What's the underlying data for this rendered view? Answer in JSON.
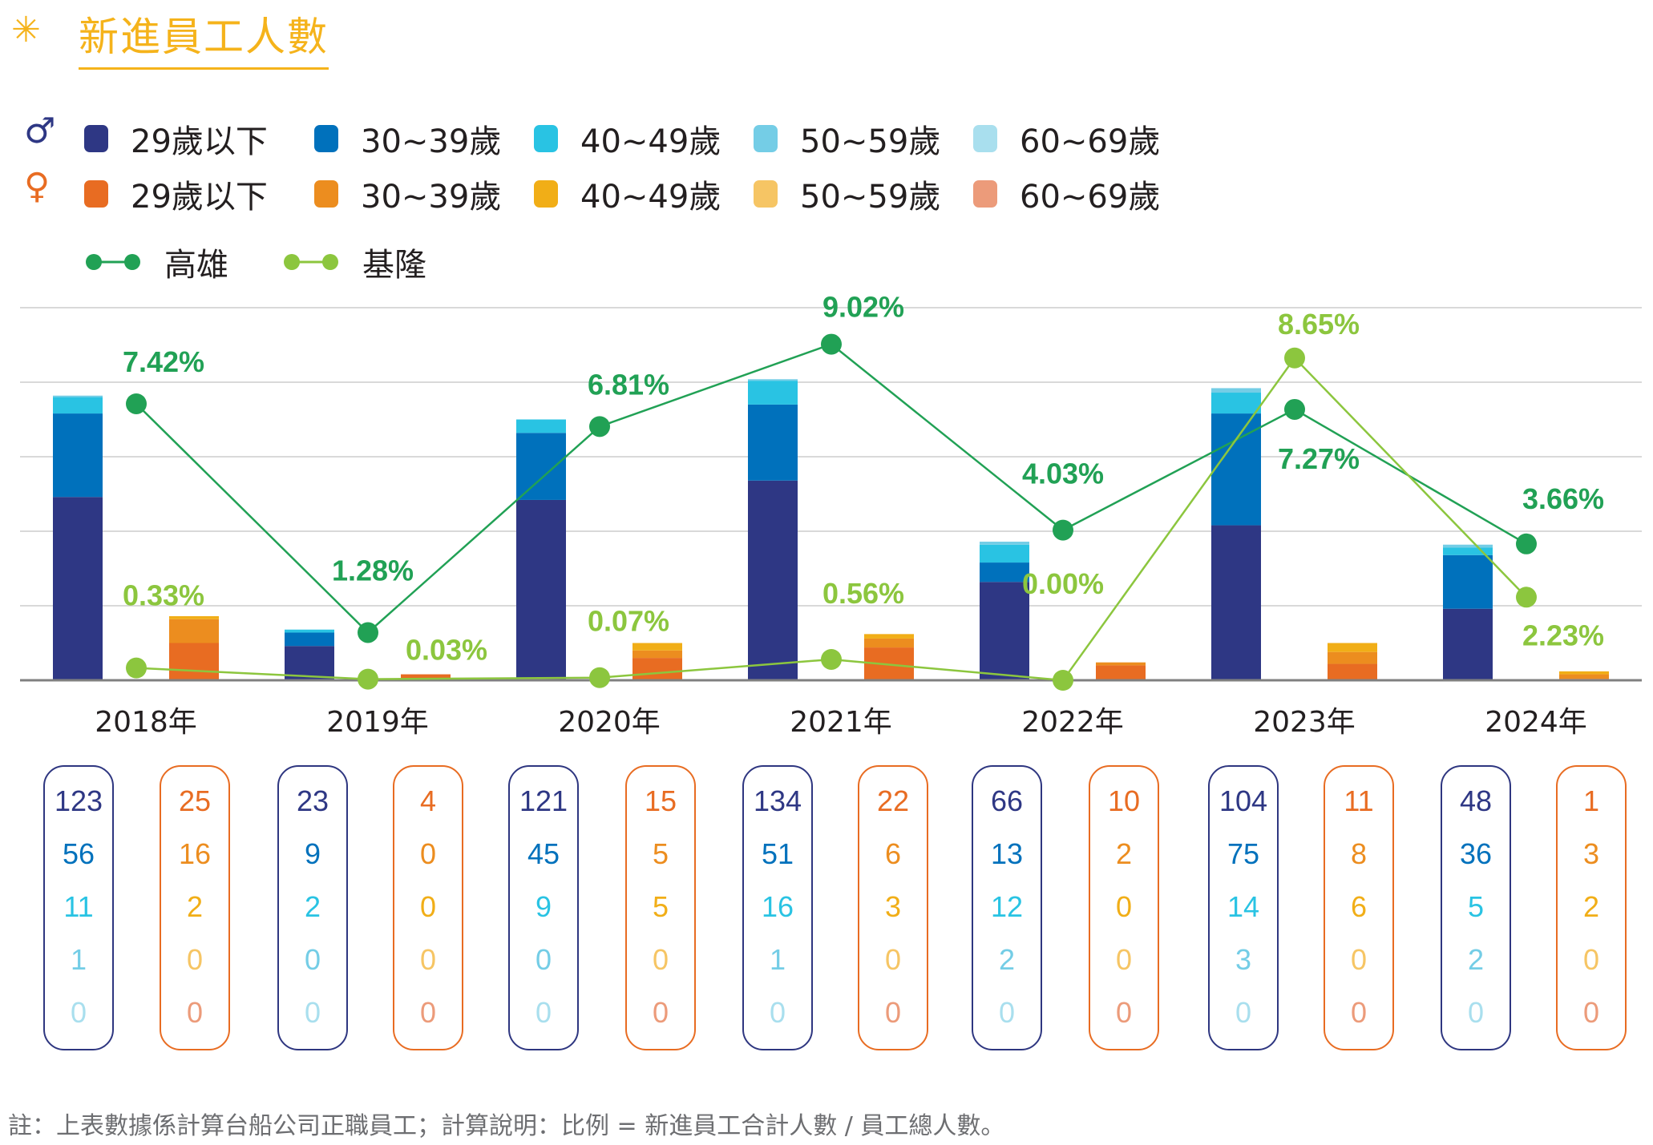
{
  "header": {
    "star_icon": "asterisk-icon",
    "title": "新進員工人數"
  },
  "legend": {
    "male_icon": "male-symbol-icon",
    "female_icon": "female-symbol-icon",
    "male_glyph": "♂",
    "female_glyph": "♀",
    "male": [
      {
        "label": "29歲以下",
        "color": "#2e3784"
      },
      {
        "label": "30~39歲",
        "color": "#0071bc"
      },
      {
        "label": "40~49歲",
        "color": "#29c3e3"
      },
      {
        "label": "50~59歲",
        "color": "#74cde6"
      },
      {
        "label": "60~69歲",
        "color": "#a9dfee"
      }
    ],
    "female": [
      {
        "label": "29歲以下",
        "color": "#e86c22"
      },
      {
        "label": "30~39歲",
        "color": "#ec8d1f"
      },
      {
        "label": "40~49歲",
        "color": "#f1ae17"
      },
      {
        "label": "50~59歲",
        "color": "#f6c564"
      },
      {
        "label": "60~69歲",
        "color": "#ec9b7a"
      }
    ],
    "lines": [
      {
        "label": "高雄",
        "color": "#21a155"
      },
      {
        "label": "基隆",
        "color": "#8cc63e"
      }
    ]
  },
  "chart_data": {
    "type": "bar",
    "title": "新進員工人數",
    "categories": [
      "2018年",
      "2019年",
      "2020年",
      "2021年",
      "2022年",
      "2023年",
      "2024年"
    ],
    "stack_labels": [
      "29歲以下",
      "30~39歲",
      "40~49歲",
      "50~59歲",
      "60~69歲"
    ],
    "male_series": [
      {
        "name": "男 29歲以下",
        "values": [
          123,
          23,
          121,
          134,
          66,
          104,
          48
        ]
      },
      {
        "name": "男 30~39歲",
        "values": [
          56,
          9,
          45,
          51,
          13,
          75,
          36
        ]
      },
      {
        "name": "男 40~49歲",
        "values": [
          11,
          2,
          9,
          16,
          12,
          14,
          5
        ]
      },
      {
        "name": "男 50~59歲",
        "values": [
          1,
          0,
          0,
          1,
          2,
          3,
          2
        ]
      },
      {
        "name": "男 60~69歲",
        "values": [
          0,
          0,
          0,
          0,
          0,
          0,
          0
        ]
      }
    ],
    "female_series": [
      {
        "name": "女 29歲以下",
        "values": [
          25,
          4,
          15,
          22,
          10,
          11,
          1
        ]
      },
      {
        "name": "女 30~39歲",
        "values": [
          16,
          0,
          5,
          6,
          2,
          8,
          3
        ]
      },
      {
        "name": "女 40~49歲",
        "values": [
          2,
          0,
          5,
          3,
          0,
          6,
          2
        ]
      },
      {
        "name": "女 50~59歲",
        "values": [
          0,
          0,
          0,
          0,
          0,
          0,
          0
        ]
      },
      {
        "name": "女 60~69歲",
        "values": [
          0,
          0,
          0,
          0,
          0,
          0,
          0
        ]
      }
    ],
    "line_series": [
      {
        "name": "高雄",
        "unit": "%",
        "values": [
          7.42,
          1.28,
          6.81,
          9.02,
          4.03,
          7.27,
          3.66
        ],
        "labels": [
          "7.42%",
          "1.28%",
          "6.81%",
          "9.02%",
          "4.03%",
          "7.27%",
          "3.66%"
        ]
      },
      {
        "name": "基隆",
        "unit": "%",
        "values": [
          0.33,
          0.03,
          0.07,
          0.56,
          0.0,
          8.65,
          2.23
        ],
        "labels": [
          "0.33%",
          "0.03%",
          "0.07%",
          "0.56%",
          "0.00%",
          "8.65%",
          "2.23%"
        ]
      }
    ],
    "grid": true,
    "bar_ylim": [
      0,
      225
    ],
    "line_ylim": [
      0,
      10
    ],
    "legend_position": "top-left"
  },
  "table": {
    "columns": [
      {
        "year": "2018年",
        "gender": "male",
        "values": [
          "123",
          "56",
          "11",
          "1",
          "0"
        ]
      },
      {
        "year": "2018年",
        "gender": "female",
        "values": [
          "25",
          "16",
          "2",
          "0",
          "0"
        ]
      },
      {
        "year": "2019年",
        "gender": "male",
        "values": [
          "23",
          "9",
          "2",
          "0",
          "0"
        ]
      },
      {
        "year": "2019年",
        "gender": "female",
        "values": [
          "4",
          "0",
          "0",
          "0",
          "0"
        ]
      },
      {
        "year": "2020年",
        "gender": "male",
        "values": [
          "121",
          "45",
          "9",
          "0",
          "0"
        ]
      },
      {
        "year": "2020年",
        "gender": "female",
        "values": [
          "15",
          "5",
          "5",
          "0",
          "0"
        ]
      },
      {
        "year": "2021年",
        "gender": "male",
        "values": [
          "134",
          "51",
          "16",
          "1",
          "0"
        ]
      },
      {
        "year": "2021年",
        "gender": "female",
        "values": [
          "22",
          "6",
          "3",
          "0",
          "0"
        ]
      },
      {
        "year": "2022年",
        "gender": "male",
        "values": [
          "66",
          "13",
          "12",
          "2",
          "0"
        ]
      },
      {
        "year": "2022年",
        "gender": "female",
        "values": [
          "10",
          "2",
          "0",
          "0",
          "0"
        ]
      },
      {
        "year": "2023年",
        "gender": "male",
        "values": [
          "104",
          "75",
          "14",
          "3",
          "0"
        ]
      },
      {
        "year": "2023年",
        "gender": "female",
        "values": [
          "11",
          "8",
          "6",
          "0",
          "0"
        ]
      },
      {
        "year": "2024年",
        "gender": "male",
        "values": [
          "48",
          "36",
          "5",
          "2",
          "0"
        ]
      },
      {
        "year": "2024年",
        "gender": "female",
        "values": [
          "1",
          "3",
          "2",
          "0",
          "0"
        ]
      }
    ]
  },
  "footnote": "註：上表數據係計算台船公司正職員工；計算說明：比例 = 新進員工合計人數 / 員工總人數。"
}
